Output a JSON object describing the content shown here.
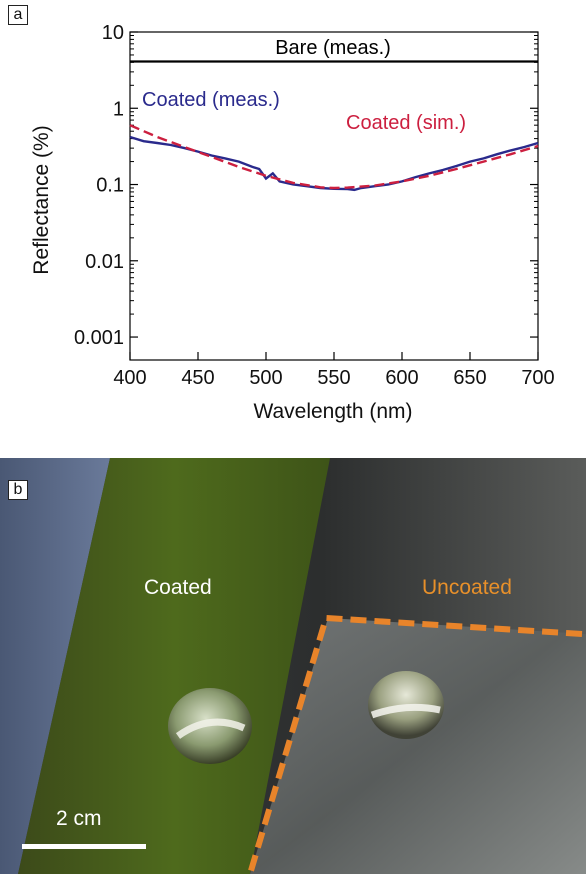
{
  "panel_a": {
    "label": "a"
  },
  "panel_b": {
    "label": "b",
    "coated_label": "Coated",
    "uncoated_label": "Uncoated",
    "scale_bar_label": "2 cm",
    "colors": {
      "coated_text": "#ffffff",
      "uncoated_text": "#e8902a",
      "outline": "#e8842a"
    }
  },
  "chart_data": {
    "type": "line",
    "xlabel": "Wavelength (nm)",
    "ylabel": "Reflectance (%)",
    "xlim": [
      400,
      700
    ],
    "ylim": [
      0.0005,
      10
    ],
    "yscale": "log",
    "x_ticks": [
      400,
      450,
      500,
      550,
      600,
      650,
      700
    ],
    "y_ticks": [
      10,
      1,
      0.1,
      0.01,
      0.001
    ],
    "y_tick_labels": [
      "10",
      "1",
      "0.1",
      "0.01",
      "0.001"
    ],
    "grid": false,
    "series": [
      {
        "name": "Bare (meas.)",
        "color": "#000000",
        "style": "solid",
        "x": [
          400,
          450,
          500,
          550,
          600,
          650,
          700
        ],
        "y": [
          4.1,
          4.1,
          4.1,
          4.1,
          4.1,
          4.1,
          4.1
        ]
      },
      {
        "name": "Coated (meas.)",
        "color": "#2a2a8c",
        "style": "solid",
        "x": [
          400,
          410,
          420,
          430,
          440,
          450,
          460,
          470,
          480,
          490,
          495,
          500,
          505,
          510,
          520,
          530,
          540,
          550,
          560,
          565,
          570,
          580,
          590,
          600,
          610,
          620,
          630,
          640,
          650,
          660,
          670,
          680,
          690,
          700
        ],
        "y": [
          0.42,
          0.37,
          0.35,
          0.33,
          0.3,
          0.27,
          0.24,
          0.22,
          0.2,
          0.17,
          0.16,
          0.12,
          0.14,
          0.11,
          0.1,
          0.095,
          0.09,
          0.088,
          0.087,
          0.085,
          0.09,
          0.095,
          0.1,
          0.11,
          0.125,
          0.14,
          0.155,
          0.175,
          0.2,
          0.22,
          0.25,
          0.28,
          0.31,
          0.35
        ]
      },
      {
        "name": "Coated (sim.)",
        "color": "#cc1f3f",
        "style": "dashed",
        "x": [
          400,
          420,
          440,
          460,
          480,
          500,
          520,
          540,
          550,
          560,
          580,
          600,
          620,
          640,
          660,
          680,
          700
        ],
        "y": [
          0.6,
          0.42,
          0.31,
          0.23,
          0.17,
          0.13,
          0.105,
          0.092,
          0.09,
          0.091,
          0.097,
          0.11,
          0.13,
          0.16,
          0.2,
          0.25,
          0.32
        ]
      }
    ],
    "annotations": [
      {
        "text": "Bare (meas.)",
        "series": 0
      },
      {
        "text": "Coated (meas.)",
        "series": 1
      },
      {
        "text": "Coated (sim.)",
        "series": 2
      }
    ]
  }
}
